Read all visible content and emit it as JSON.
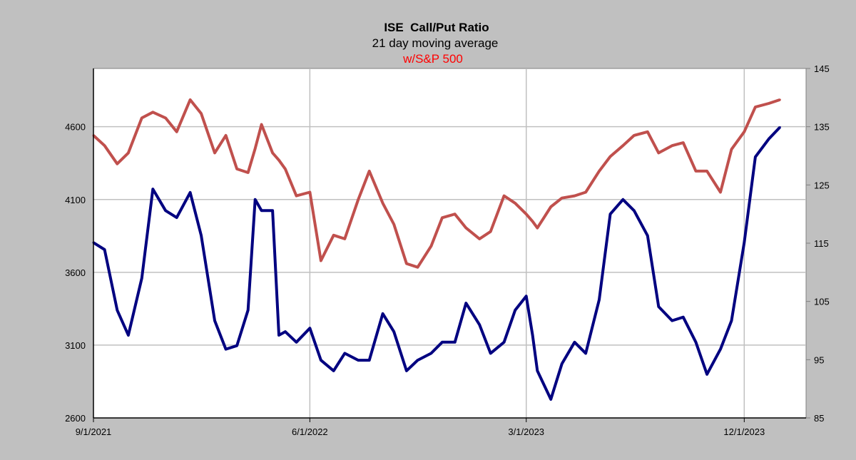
{
  "chart_data": {
    "type": "line",
    "title": "ISE  Call/Put Ratio",
    "subtitle": "21 day moving average",
    "subtitle2": "w/S&P 500",
    "xlabel": "",
    "ylabel": "",
    "grid": true,
    "xlim": [
      "2021-09-01",
      "2024-02-17"
    ],
    "x_ticks": [
      "9/1/2021",
      "6/1/2022",
      "3/1/2023",
      "12/1/2023"
    ],
    "x_tick_dates": [
      "2021-09-01",
      "2022-06-01",
      "2023-03-01",
      "2023-12-01"
    ],
    "y_left": {
      "lim": [
        2600,
        5000
      ],
      "ticks": [
        2600,
        3100,
        3600,
        4100,
        4600
      ]
    },
    "y_right": {
      "lim": [
        85,
        145
      ],
      "ticks": [
        85,
        95,
        105,
        115,
        125,
        135,
        145
      ]
    },
    "x": [
      "2021-09-01",
      "2021-09-15",
      "2021-10-01",
      "2021-10-15",
      "2021-11-01",
      "2021-11-15",
      "2021-12-01",
      "2021-12-15",
      "2022-01-01",
      "2022-01-15",
      "2022-02-01",
      "2022-02-15",
      "2022-03-01",
      "2022-03-15",
      "2022-03-24",
      "2022-04-01",
      "2022-04-15",
      "2022-04-23",
      "2022-05-01",
      "2022-05-15",
      "2022-06-01",
      "2022-06-15",
      "2022-07-01",
      "2022-07-15",
      "2022-08-01",
      "2022-08-15",
      "2022-09-01",
      "2022-09-15",
      "2022-10-01",
      "2022-10-15",
      "2022-11-01",
      "2022-11-15",
      "2022-12-01",
      "2022-12-15",
      "2023-01-01",
      "2023-01-15",
      "2023-02-01",
      "2023-02-15",
      "2023-03-01",
      "2023-03-09",
      "2023-03-15",
      "2023-04-01",
      "2023-04-15",
      "2023-05-01",
      "2023-05-15",
      "2023-06-01",
      "2023-06-15",
      "2023-07-01",
      "2023-07-15",
      "2023-08-01",
      "2023-08-15",
      "2023-09-01",
      "2023-09-15",
      "2023-10-01",
      "2023-10-15",
      "2023-11-01",
      "2023-11-15",
      "2023-12-01",
      "2023-12-15",
      "2024-01-01",
      "2024-01-15"
    ],
    "series": [
      {
        "axis": "left",
        "color": "#c0504d",
        "values": [
          4540,
          4470,
          4345,
          4420,
          4660,
          4700,
          4660,
          4565,
          4785,
          4690,
          4420,
          4540,
          4310,
          4285,
          4450,
          4615,
          4420,
          4370,
          4310,
          4125,
          4150,
          3680,
          3855,
          3830,
          4100,
          4295,
          4075,
          3930,
          3660,
          3635,
          3780,
          3975,
          4000,
          3905,
          3830,
          3880,
          4125,
          4075,
          4000,
          3950,
          3905,
          4050,
          4110,
          4125,
          4150,
          4295,
          4395,
          4470,
          4540,
          4565,
          4420,
          4470,
          4490,
          4295,
          4295,
          4150,
          4445,
          4565,
          4735,
          4760,
          4785
        ]
      },
      {
        "axis": "right",
        "color": "#000080",
        "values": [
          115.1,
          113.9,
          103.5,
          99.2,
          109.0,
          124.3,
          120.6,
          119.4,
          123.7,
          116.3,
          101.7,
          96.8,
          97.4,
          103.5,
          122.5,
          120.6,
          120.6,
          99.2,
          99.8,
          98.0,
          100.4,
          94.9,
          93.1,
          96.1,
          94.9,
          94.9,
          102.9,
          99.8,
          93.1,
          94.9,
          96.1,
          98.0,
          98.0,
          104.7,
          101.0,
          96.1,
          98.0,
          103.5,
          105.9,
          99.2,
          93.1,
          88.2,
          94.3,
          98.0,
          96.1,
          105.3,
          120.0,
          122.5,
          120.6,
          116.3,
          104.1,
          101.7,
          102.3,
          98.0,
          92.5,
          96.8,
          101.7,
          115.1,
          129.8,
          132.9,
          134.9
        ]
      }
    ]
  }
}
